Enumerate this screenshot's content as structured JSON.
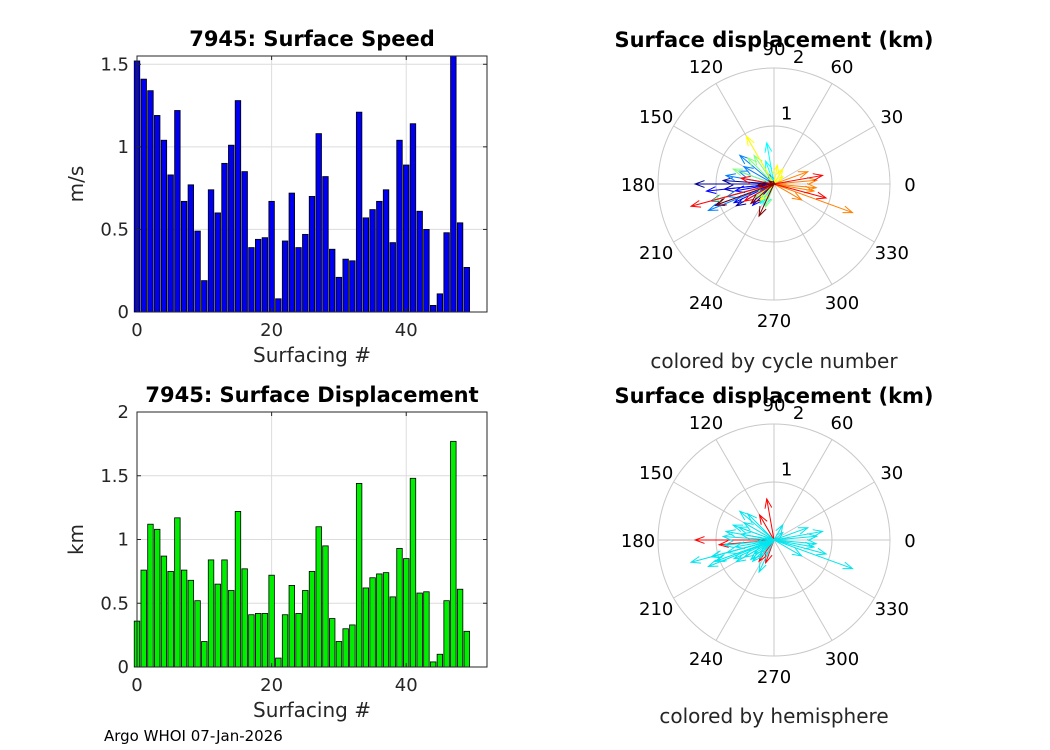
{
  "footer": "Argo WHOI 07-Jan-2026",
  "chart_data": [
    {
      "type": "bar",
      "title": "7945: Surface Speed",
      "xlabel": "Surfacing #",
      "ylabel": "m/s",
      "xlim": [
        0,
        52
      ],
      "ylim": [
        0,
        1.55
      ],
      "xticks": [
        0,
        20,
        40
      ],
      "yticks": [
        0,
        0.5,
        1,
        1.5
      ],
      "ytick_labels": [
        "0",
        "0.5",
        "1",
        "1.5"
      ],
      "grid": true,
      "bar_color": "#0000ee",
      "x": [
        0,
        1,
        2,
        3,
        4,
        5,
        6,
        7,
        8,
        9,
        10,
        11,
        12,
        13,
        14,
        15,
        16,
        17,
        18,
        19,
        20,
        21,
        22,
        23,
        24,
        25,
        26,
        27,
        28,
        29,
        30,
        31,
        32,
        33,
        34,
        35,
        36,
        37,
        38,
        39,
        40,
        41,
        42,
        43,
        44,
        45,
        46,
        47,
        48,
        49
      ],
      "values": [
        1.52,
        1.41,
        1.34,
        1.19,
        1.04,
        0.83,
        1.22,
        0.67,
        0.77,
        0.49,
        0.19,
        0.74,
        0.6,
        0.9,
        1.01,
        1.28,
        0.85,
        0.39,
        0.44,
        0.45,
        0.67,
        0.08,
        0.43,
        0.72,
        0.39,
        0.47,
        0.7,
        1.08,
        0.82,
        0.38,
        0.21,
        0.32,
        0.31,
        1.21,
        0.57,
        0.62,
        0.67,
        0.74,
        0.42,
        1.04,
        0.89,
        1.14,
        0.61,
        0.5,
        0.04,
        0.11,
        0.48,
        1.56,
        0.54,
        0.27
      ]
    },
    {
      "type": "polar-vector",
      "title": "Surface displacement (km)",
      "caption": "colored by cycle number",
      "rmax": 2,
      "rings": [
        1,
        2
      ],
      "ring_labels": [
        "1",
        "2"
      ],
      "angle_ticks": [
        0,
        30,
        60,
        90,
        120,
        150,
        180,
        210,
        240,
        270,
        300,
        330
      ],
      "angle_labels": [
        "0",
        "30",
        "60",
        "90",
        "120",
        "150",
        "180",
        "210",
        "240",
        "270",
        "300",
        "330"
      ],
      "color_mode": "cycle",
      "colors": [
        "#00008f",
        "#0000ff",
        "#0080ff",
        "#00ffff",
        "#80ff80",
        "#ffff00",
        "#ff8000",
        "#ff0000",
        "#800000"
      ],
      "vectors": [
        {
          "angle": 180,
          "r": 1.36,
          "cycle": 1
        },
        {
          "angle": 186,
          "r": 0.86,
          "cycle": 2
        },
        {
          "angle": 195,
          "r": 1.12,
          "cycle": 3
        },
        {
          "angle": 200,
          "r": 1.08,
          "cycle": 4
        },
        {
          "angle": 176,
          "r": 0.88,
          "cycle": 5
        },
        {
          "angle": 210,
          "r": 0.75,
          "cycle": 6
        },
        {
          "angle": 186,
          "r": 1.17,
          "cycle": 7
        },
        {
          "angle": 205,
          "r": 0.76,
          "cycle": 8
        },
        {
          "angle": 190,
          "r": 0.68,
          "cycle": 9
        },
        {
          "angle": 225,
          "r": 0.52,
          "cycle": 10
        },
        {
          "angle": 120,
          "r": 0.2,
          "cycle": 11
        },
        {
          "angle": 170,
          "r": 0.84,
          "cycle": 12
        },
        {
          "angle": 160,
          "r": 0.65,
          "cycle": 13
        },
        {
          "angle": 195,
          "r": 0.84,
          "cycle": 14
        },
        {
          "angle": 150,
          "r": 0.6,
          "cycle": 15
        },
        {
          "angle": 202,
          "r": 1.22,
          "cycle": 16
        },
        {
          "angle": 140,
          "r": 0.77,
          "cycle": 17
        },
        {
          "angle": 235,
          "r": 0.41,
          "cycle": 18
        },
        {
          "angle": 110,
          "r": 0.42,
          "cycle": 19
        },
        {
          "angle": 245,
          "r": 0.42,
          "cycle": 20
        },
        {
          "angle": 100,
          "r": 0.72,
          "cycle": 21
        },
        {
          "angle": 60,
          "r": 0.07,
          "cycle": 22
        },
        {
          "angle": 215,
          "r": 0.41,
          "cycle": 23
        },
        {
          "angle": 135,
          "r": 0.64,
          "cycle": 24
        },
        {
          "angle": 250,
          "r": 0.42,
          "cycle": 25
        },
        {
          "angle": 125,
          "r": 0.6,
          "cycle": 26
        },
        {
          "angle": 160,
          "r": 0.75,
          "cycle": 27
        },
        {
          "angle": 195,
          "r": 1.1,
          "cycle": 28
        },
        {
          "angle": 120,
          "r": 0.95,
          "cycle": 29
        },
        {
          "angle": 230,
          "r": 0.38,
          "cycle": 30
        },
        {
          "angle": 40,
          "r": 0.2,
          "cycle": 31
        },
        {
          "angle": 60,
          "r": 0.3,
          "cycle": 32
        },
        {
          "angle": 80,
          "r": 0.33,
          "cycle": 33
        },
        {
          "angle": 340,
          "r": 1.44,
          "cycle": 34
        },
        {
          "angle": 20,
          "r": 0.62,
          "cycle": 35
        },
        {
          "angle": 350,
          "r": 0.7,
          "cycle": 36
        },
        {
          "angle": 355,
          "r": 0.73,
          "cycle": 37
        },
        {
          "angle": 5,
          "r": 0.74,
          "cycle": 38
        },
        {
          "angle": 330,
          "r": 0.55,
          "cycle": 39
        },
        {
          "angle": 345,
          "r": 0.93,
          "cycle": 40
        },
        {
          "angle": 10,
          "r": 0.85,
          "cycle": 41
        },
        {
          "angle": 195,
          "r": 1.48,
          "cycle": 42
        },
        {
          "angle": 170,
          "r": 0.58,
          "cycle": 43
        },
        {
          "angle": 210,
          "r": 0.59,
          "cycle": 44
        },
        {
          "angle": 100,
          "r": 0.04,
          "cycle": 45
        },
        {
          "angle": 150,
          "r": 0.1,
          "cycle": 46
        },
        {
          "angle": 220,
          "r": 0.52,
          "cycle": 47
        },
        {
          "angle": 200,
          "r": 1.05,
          "cycle": 48
        },
        {
          "angle": 245,
          "r": 0.61,
          "cycle": 49
        },
        {
          "angle": 185,
          "r": 0.28,
          "cycle": 50
        }
      ]
    },
    {
      "type": "bar",
      "title": "7945: Surface Displacement",
      "xlabel": "Surfacing #",
      "ylabel": "km",
      "xlim": [
        0,
        52
      ],
      "ylim": [
        0,
        2
      ],
      "xticks": [
        0,
        20,
        40
      ],
      "yticks": [
        0,
        0.5,
        1,
        1.5,
        2
      ],
      "ytick_labels": [
        "0",
        "0.5",
        "1",
        "1.5",
        "2"
      ],
      "grid": true,
      "bar_color": "#00ee00",
      "x": [
        0,
        1,
        2,
        3,
        4,
        5,
        6,
        7,
        8,
        9,
        10,
        11,
        12,
        13,
        14,
        15,
        16,
        17,
        18,
        19,
        20,
        21,
        22,
        23,
        24,
        25,
        26,
        27,
        28,
        29,
        30,
        31,
        32,
        33,
        34,
        35,
        36,
        37,
        38,
        39,
        40,
        41,
        42,
        43,
        44,
        45,
        46,
        47,
        48,
        49
      ],
      "values": [
        0.36,
        0.76,
        1.12,
        1.08,
        0.87,
        0.75,
        1.17,
        0.76,
        0.68,
        0.52,
        0.2,
        0.84,
        0.65,
        0.84,
        0.6,
        1.22,
        0.77,
        0.41,
        0.42,
        0.42,
        0.72,
        0.07,
        0.41,
        0.64,
        0.42,
        0.6,
        0.75,
        1.1,
        0.95,
        0.38,
        0.2,
        0.3,
        0.33,
        1.44,
        0.62,
        0.7,
        0.73,
        0.74,
        0.55,
        0.93,
        0.85,
        1.48,
        0.58,
        0.59,
        0.04,
        0.1,
        0.52,
        1.77,
        0.61,
        0.28
      ]
    },
    {
      "type": "polar-vector",
      "title": "Surface displacement (km)",
      "caption": "colored by hemisphere",
      "rmax": 2,
      "rings": [
        1,
        2
      ],
      "ring_labels": [
        "1",
        "2"
      ],
      "angle_ticks": [
        0,
        30,
        60,
        90,
        120,
        150,
        180,
        210,
        240,
        270,
        300,
        330
      ],
      "angle_labels": [
        "0",
        "30",
        "60",
        "90",
        "120",
        "150",
        "180",
        "210",
        "240",
        "270",
        "300",
        "330"
      ],
      "color_mode": "hemisphere",
      "colors": {
        "red": "#ff0000",
        "cyan": "#00e5ee"
      },
      "vectors": [
        {
          "angle": 180,
          "r": 1.36,
          "color": "red"
        },
        {
          "angle": 185,
          "r": 0.95,
          "color": "red"
        },
        {
          "angle": 100,
          "r": 0.72,
          "color": "red"
        },
        {
          "angle": 120,
          "r": 0.5,
          "color": "red"
        },
        {
          "angle": 235,
          "r": 0.45,
          "color": "red"
        },
        {
          "angle": 250,
          "r": 0.42,
          "color": "red"
        },
        {
          "angle": 186,
          "r": 0.86,
          "color": "cyan"
        },
        {
          "angle": 195,
          "r": 1.12,
          "color": "cyan"
        },
        {
          "angle": 200,
          "r": 1.08,
          "color": "cyan"
        },
        {
          "angle": 176,
          "r": 0.88,
          "color": "cyan"
        },
        {
          "angle": 210,
          "r": 0.75,
          "color": "cyan"
        },
        {
          "angle": 205,
          "r": 0.76,
          "color": "cyan"
        },
        {
          "angle": 190,
          "r": 0.68,
          "color": "cyan"
        },
        {
          "angle": 225,
          "r": 0.52,
          "color": "cyan"
        },
        {
          "angle": 170,
          "r": 0.84,
          "color": "cyan"
        },
        {
          "angle": 160,
          "r": 0.65,
          "color": "cyan"
        },
        {
          "angle": 195,
          "r": 0.84,
          "color": "cyan"
        },
        {
          "angle": 150,
          "r": 0.6,
          "color": "cyan"
        },
        {
          "angle": 202,
          "r": 1.22,
          "color": "cyan"
        },
        {
          "angle": 140,
          "r": 0.77,
          "color": "cyan"
        },
        {
          "angle": 215,
          "r": 0.41,
          "color": "cyan"
        },
        {
          "angle": 135,
          "r": 0.64,
          "color": "cyan"
        },
        {
          "angle": 160,
          "r": 0.75,
          "color": "cyan"
        },
        {
          "angle": 195,
          "r": 1.1,
          "color": "cyan"
        },
        {
          "angle": 230,
          "r": 0.38,
          "color": "cyan"
        },
        {
          "angle": 40,
          "r": 0.2,
          "color": "cyan"
        },
        {
          "angle": 60,
          "r": 0.3,
          "color": "cyan"
        },
        {
          "angle": 340,
          "r": 1.44,
          "color": "cyan"
        },
        {
          "angle": 20,
          "r": 0.62,
          "color": "cyan"
        },
        {
          "angle": 350,
          "r": 0.7,
          "color": "cyan"
        },
        {
          "angle": 355,
          "r": 0.73,
          "color": "cyan"
        },
        {
          "angle": 5,
          "r": 0.74,
          "color": "cyan"
        },
        {
          "angle": 330,
          "r": 0.55,
          "color": "cyan"
        },
        {
          "angle": 345,
          "r": 0.93,
          "color": "cyan"
        },
        {
          "angle": 10,
          "r": 0.85,
          "color": "cyan"
        },
        {
          "angle": 195,
          "r": 1.48,
          "color": "cyan"
        },
        {
          "angle": 170,
          "r": 0.58,
          "color": "cyan"
        },
        {
          "angle": 210,
          "r": 0.59,
          "color": "cyan"
        },
        {
          "angle": 220,
          "r": 0.52,
          "color": "cyan"
        },
        {
          "angle": 200,
          "r": 1.05,
          "color": "cyan"
        },
        {
          "angle": 245,
          "r": 0.61,
          "color": "cyan"
        },
        {
          "angle": 185,
          "r": 0.28,
          "color": "cyan"
        }
      ]
    }
  ]
}
